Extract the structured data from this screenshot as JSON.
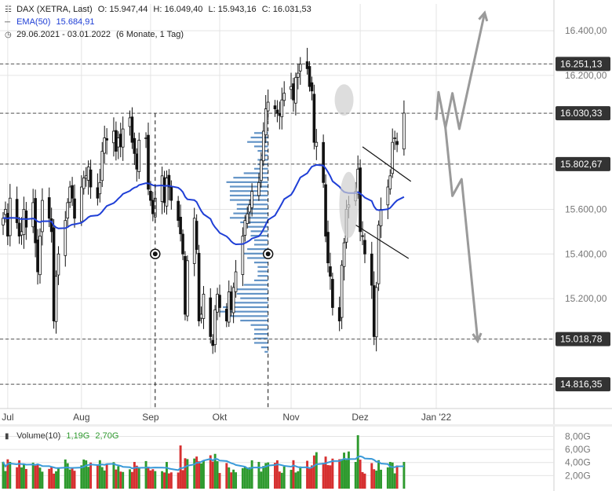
{
  "header": {
    "symbol": "DAX (XETRA, Last)",
    "open_label": "O:",
    "open": "15.947,44",
    "high_label": "H:",
    "high": "16.049,40",
    "low_label": "L:",
    "low": "15.943,16",
    "close_label": "C:",
    "close": "16.031,53",
    "ema_label": "EMA(50)",
    "ema_value": "15.684,91",
    "range": "29.06.2021 - 03.01.2022",
    "period": "(6 Monate, 1 Tag)",
    "volume_label": "Volume(10)",
    "volume_v1": "1,19G",
    "volume_v2": "2,70G"
  },
  "colors": {
    "up": "#2e9a2e",
    "down": "#d63030",
    "ema": "#1f3fd6",
    "volume_ma": "#3a9ad9",
    "profile": "#2d6fb3",
    "projection": "#9a9a9a",
    "grid": "#e4e4e4",
    "badge_bg": "#333333",
    "badge_text": "#ffffff"
  },
  "chart_data": {
    "type": "candlestick",
    "x_range": [
      "2021-06-29",
      "2022-01-03"
    ],
    "ylim": [
      14750,
      16520
    ],
    "y_ticks": [
      "14.816,35",
      "15.018,78",
      "15.200,00",
      "15.400,00",
      "15.600,00",
      "15.802,67",
      "16.030,33",
      "16.200,00",
      "16.251,13",
      "16.400,00"
    ],
    "y_tick_values": [
      14816.35,
      15018.78,
      15200,
      15400,
      15600,
      15802.67,
      16030.33,
      16200,
      16251.13,
      16400
    ],
    "highlighted_levels": [
      {
        "value": 16251.13,
        "label": "16.251,13"
      },
      {
        "value": 16030.33,
        "label": "16.030,33"
      },
      {
        "value": 15802.67,
        "label": "15.802,67"
      },
      {
        "value": 15018.78,
        "label": "15.018,78"
      },
      {
        "value": 14816.35,
        "label": "14.816,35"
      }
    ],
    "x_ticks": [
      {
        "label": "Jul",
        "date": "2021-07-01"
      },
      {
        "label": "Aug",
        "date": "2021-08-02"
      },
      {
        "label": "Sep",
        "date": "2021-09-01"
      },
      {
        "label": "Okt",
        "date": "2021-10-01"
      },
      {
        "label": "Nov",
        "date": "2021-11-01"
      },
      {
        "label": "Dez",
        "date": "2021-12-01"
      },
      {
        "label": "Jan '22",
        "date": "2022-01-03"
      }
    ],
    "close_series": [
      15560,
      15600,
      15480,
      15650,
      15540,
      15480,
      15500,
      15600,
      15520,
      15630,
      15450,
      15320,
      15480,
      15640,
      15560,
      15500,
      15100,
      15300,
      15400,
      15550,
      15630,
      15700,
      15650,
      15560,
      15700,
      15740,
      15750,
      15790,
      15700,
      15650,
      15720,
      15860,
      15920,
      15910,
      15950,
      15860,
      15920,
      15880,
      15960,
      16010,
      15900,
      15850,
      15780,
      15910,
      15920,
      15690,
      15640,
      15580,
      15650,
      15750,
      15630,
      15740,
      15700,
      15640,
      15550,
      15490,
      15400,
      15130,
      15370,
      15560,
      15420,
      15100,
      15130,
      15220,
      15030,
      14990,
      15150,
      15220,
      15160,
      15100,
      15230,
      15150,
      15250,
      15320,
      15480,
      15550,
      15580,
      15620,
      15680,
      15720,
      15820,
      15950,
      16050,
      16080,
      16050,
      16030,
      16020,
      16090,
      16120,
      16150,
      16090,
      16190,
      16210,
      16250,
      16230,
      16150,
      16130,
      15900,
      15900,
      15720,
      15480,
      15360,
      15300,
      15160,
      15100,
      15350,
      15450,
      15600,
      15620,
      15680,
      15780,
      15500,
      15480,
      15400,
      15260,
      15030,
      15250,
      15530,
      15600,
      15700,
      15750,
      15900,
      15920,
      15890,
      16031
    ],
    "ema_label": "EMA(50)",
    "volume_ticks": [
      "2,00G",
      "4,00G",
      "6,00G",
      "8,00G"
    ],
    "volume_tick_values": [
      2,
      4,
      6,
      8
    ],
    "volume_ylim": [
      0,
      9.5
    ],
    "volume_unit": "G",
    "events": [
      {
        "date": "2021-09-03",
        "value": 15400
      },
      {
        "date": "2021-10-22",
        "value": 15400
      }
    ],
    "trend_channel": {
      "upper": [
        {
          "date": "2021-12-02",
          "value": 15880
        },
        {
          "date": "2021-12-23",
          "value": 15725
        }
      ],
      "lower": [
        {
          "date": "2021-11-29",
          "value": 15530
        },
        {
          "date": "2021-12-22",
          "value": 15380
        }
      ]
    },
    "projections": [
      {
        "points": [
          {
            "date": "2022-01-03",
            "value": 16000
          },
          {
            "date": "2022-01-04",
            "value": 16125
          },
          {
            "date": "2022-01-07",
            "value": 15965
          },
          {
            "date": "2022-01-10",
            "value": 16120
          },
          {
            "date": "2022-01-13",
            "value": 15960
          },
          {
            "date": "2022-01-24",
            "value": 16480
          }
        ]
      },
      {
        "points": [
          {
            "date": "2022-01-07",
            "value": 15965
          },
          {
            "date": "2022-01-10",
            "value": 15660
          },
          {
            "date": "2022-01-14",
            "value": 15735
          },
          {
            "date": "2022-01-21",
            "value": 15010
          }
        ]
      }
    ]
  }
}
